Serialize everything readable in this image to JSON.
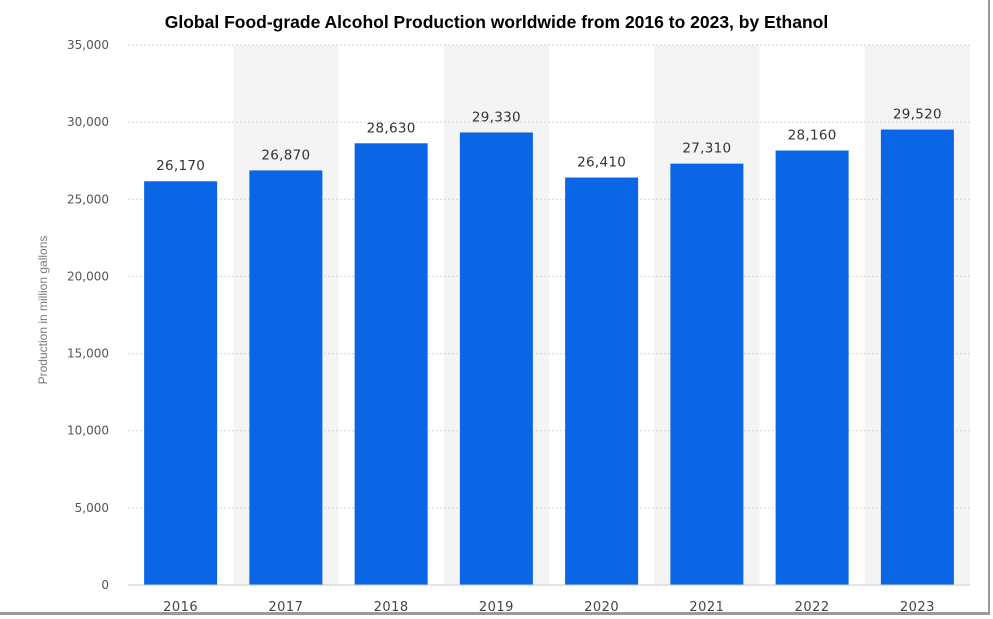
{
  "chart_data": {
    "type": "bar",
    "title": "Global Food-grade Alcohol Production worldwide from 2016 to 2023, by Ethanol",
    "xlabel": "",
    "ylabel": "Production in million gallons",
    "categories": [
      "2016",
      "2017",
      "2018",
      "2019",
      "2020",
      "2021",
      "2022",
      "2023"
    ],
    "values": [
      26170,
      26870,
      28630,
      29330,
      26410,
      27310,
      28160,
      29520
    ],
    "data_labels": [
      "26,170",
      "26,870",
      "28,630",
      "29,330",
      "26,410",
      "27,310",
      "28,160",
      "29,520"
    ],
    "ylim": [
      0,
      35000
    ],
    "yticks": [
      0,
      5000,
      10000,
      15000,
      20000,
      25000,
      30000,
      35000
    ],
    "ytick_labels": [
      "0",
      "5,000",
      "10,000",
      "15,000",
      "20,000",
      "25,000",
      "30,000",
      "35,000"
    ],
    "grid": true,
    "bar_color": "#0a66e4",
    "band_color": "#f4f4f4",
    "grid_color": "#d4d4d4"
  }
}
